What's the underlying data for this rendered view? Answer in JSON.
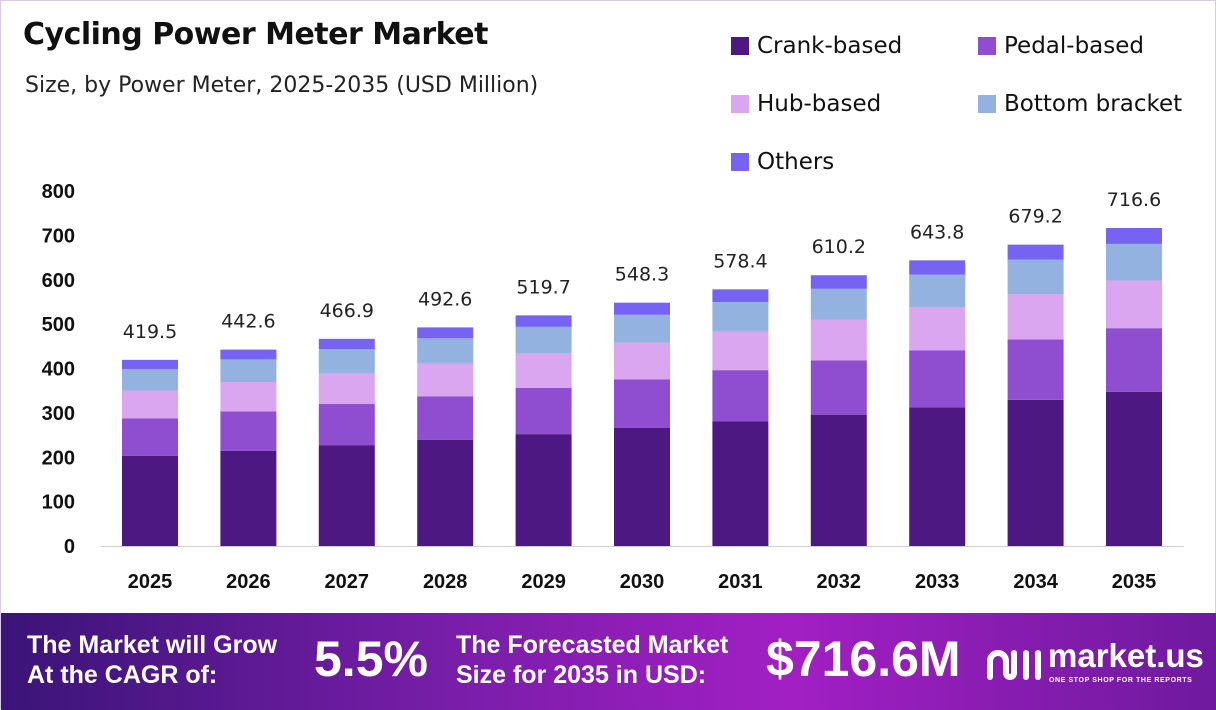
{
  "title": "Cycling Power Meter Market",
  "subtitle": "Size, by Power Meter, 2025-2035 (USD Million)",
  "colors": {
    "crank": "#4e1883",
    "pedal": "#8e4ecf",
    "hub": "#d9a6ef",
    "bottom": "#94b2df",
    "others": "#7663f2"
  },
  "chart_data": {
    "type": "bar",
    "stacked": true,
    "categories": [
      "2025",
      "2026",
      "2027",
      "2028",
      "2029",
      "2030",
      "2031",
      "2032",
      "2033",
      "2034",
      "2035"
    ],
    "series": [
      {
        "name": "Crank-based",
        "values": [
          203.5,
          214.7,
          226.5,
          239.0,
          252.1,
          266.0,
          280.6,
          296.0,
          312.3,
          329.5,
          347.6
        ]
      },
      {
        "name": "Pedal-based",
        "values": [
          83.9,
          88.5,
          93.4,
          98.5,
          104.0,
          109.7,
          115.7,
          122.0,
          128.8,
          135.8,
          143.3
        ]
      },
      {
        "name": "Hub-based",
        "values": [
          62.9,
          66.4,
          70.0,
          73.9,
          78.0,
          82.2,
          86.8,
          91.5,
          96.6,
          101.9,
          107.5
        ]
      },
      {
        "name": "Bottom bracket",
        "values": [
          48.2,
          50.9,
          53.7,
          56.6,
          59.8,
          63.1,
          66.5,
          70.2,
          74.0,
          78.1,
          82.4
        ]
      },
      {
        "name": "Others",
        "values": [
          21.0,
          22.1,
          23.3,
          24.6,
          25.8,
          27.3,
          28.8,
          30.5,
          32.1,
          33.9,
          35.8
        ]
      }
    ],
    "totals": [
      "419.5",
      "442.6",
      "466.9",
      "492.6",
      "519.7",
      "548.3",
      "578.4",
      "610.2",
      "643.8",
      "679.2",
      "716.6"
    ],
    "yticks": [
      0,
      100,
      200,
      300,
      400,
      500,
      600,
      700,
      800
    ],
    "ylim": [
      0,
      800
    ],
    "grid": false,
    "legend_position": "top-right"
  },
  "banner": {
    "cagr_label_line1": "The Market will Grow",
    "cagr_label_line2": "At the CAGR of:",
    "cagr_value": "5.5%",
    "forecast_label_line1": "The Forecasted Market",
    "forecast_label_line2": "Size for 2035 in USD:",
    "forecast_value": "$716.6M",
    "brand_name": "market.us",
    "brand_tagline": "ONE STOP SHOP FOR THE REPORTS"
  }
}
